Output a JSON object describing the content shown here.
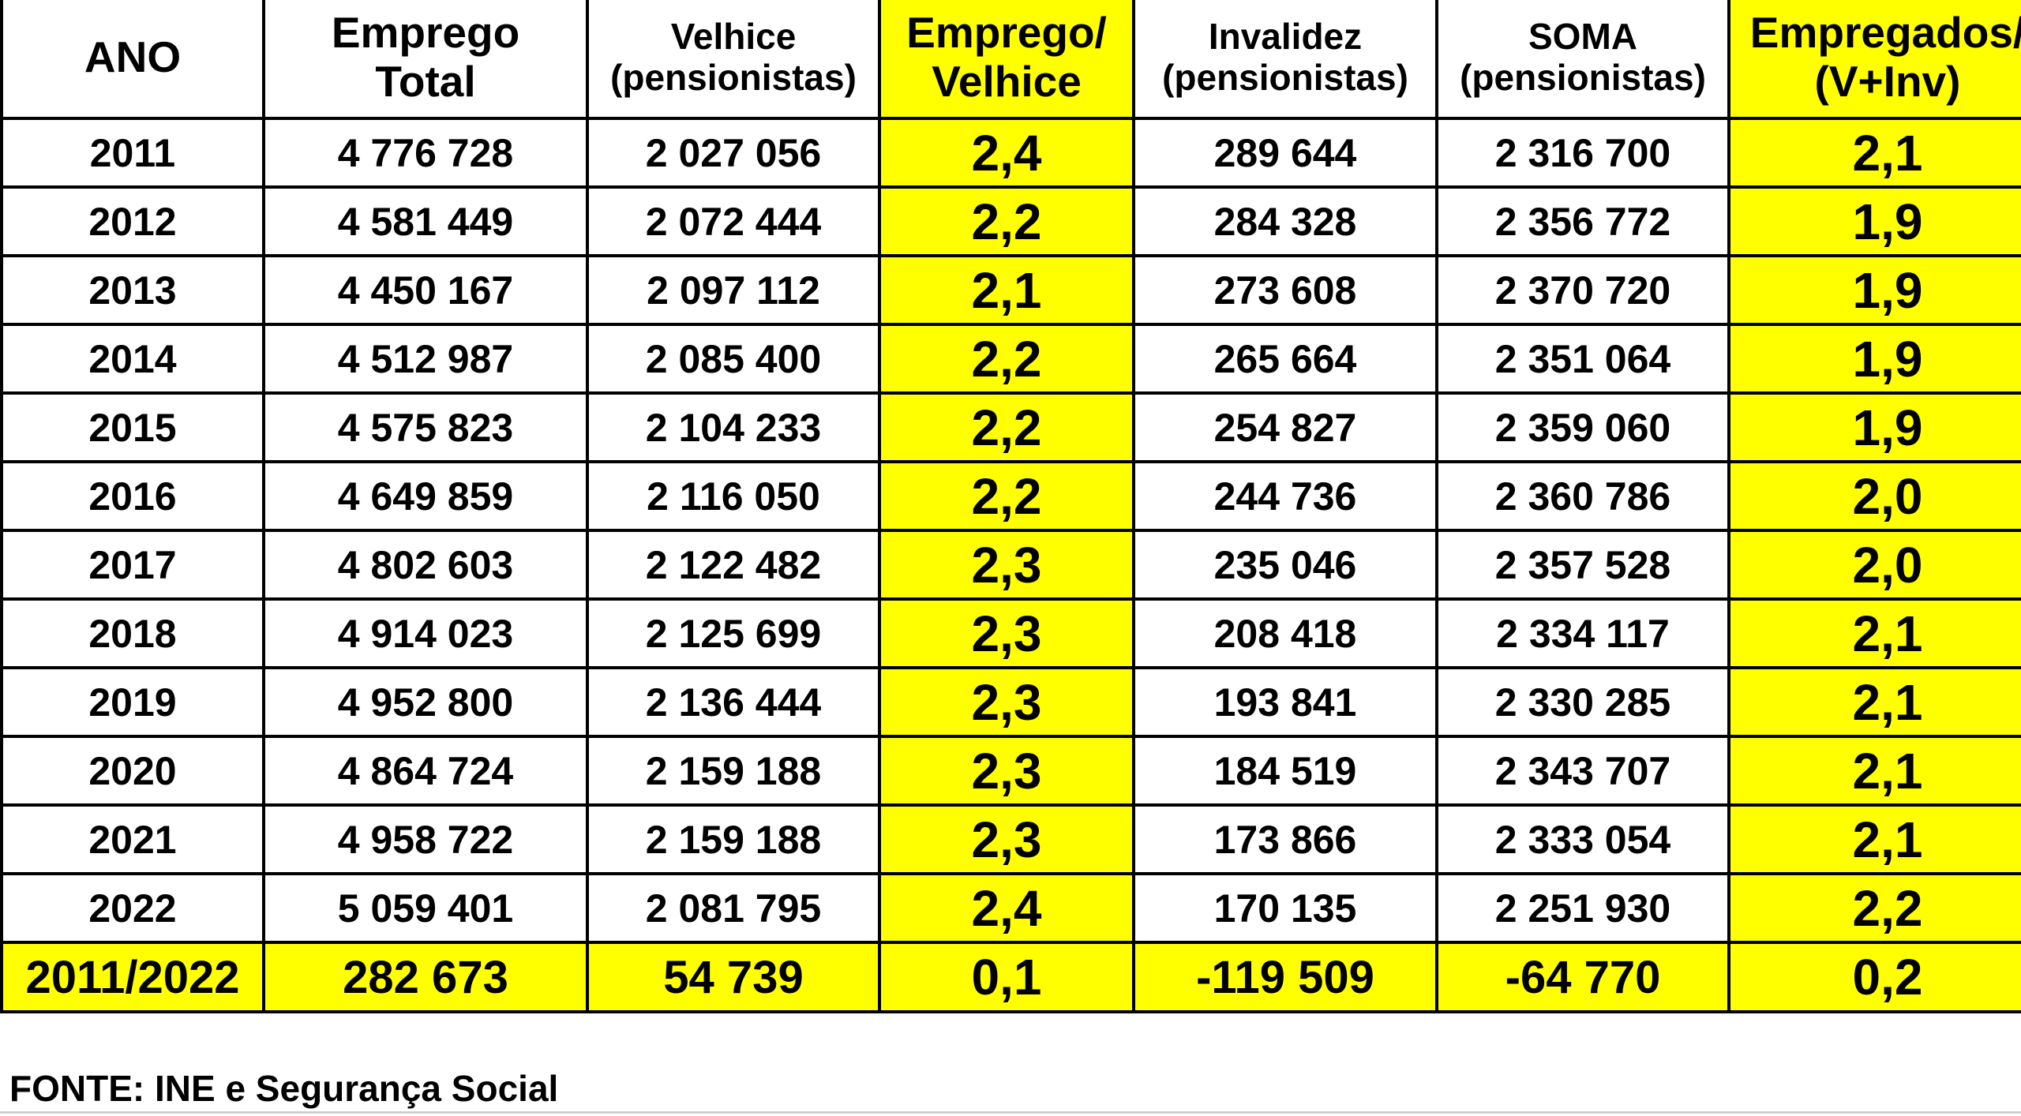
{
  "table": {
    "headers": {
      "ano": [
        "ANO"
      ],
      "emprego_total": [
        "Emprego",
        "Total"
      ],
      "velhice": [
        "Velhice",
        "(pensionistas)"
      ],
      "emprego_velhice": [
        "Emprego/",
        "Velhice"
      ],
      "invalidez": [
        "Invalidez",
        "(pensionistas)"
      ],
      "soma": [
        "SOMA",
        "(pensionistas)"
      ],
      "empregados_vinv": [
        "Empregados/",
        "(V+Inv)"
      ]
    },
    "rows": [
      {
        "ano": "2011",
        "emprego_total": "4 776 728",
        "velhice": "2 027 056",
        "emprego_velhice": "2,4",
        "invalidez": "289 644",
        "soma": "2 316 700",
        "empregados_vinv": "2,1"
      },
      {
        "ano": "2012",
        "emprego_total": "4 581 449",
        "velhice": "2 072 444",
        "emprego_velhice": "2,2",
        "invalidez": "284 328",
        "soma": "2 356 772",
        "empregados_vinv": "1,9"
      },
      {
        "ano": "2013",
        "emprego_total": "4 450 167",
        "velhice": "2 097 112",
        "emprego_velhice": "2,1",
        "invalidez": "273 608",
        "soma": "2 370 720",
        "empregados_vinv": "1,9"
      },
      {
        "ano": "2014",
        "emprego_total": "4 512 987",
        "velhice": "2 085 400",
        "emprego_velhice": "2,2",
        "invalidez": "265 664",
        "soma": "2 351 064",
        "empregados_vinv": "1,9"
      },
      {
        "ano": "2015",
        "emprego_total": "4 575 823",
        "velhice": "2 104 233",
        "emprego_velhice": "2,2",
        "invalidez": "254 827",
        "soma": "2 359 060",
        "empregados_vinv": "1,9"
      },
      {
        "ano": "2016",
        "emprego_total": "4 649 859",
        "velhice": "2 116 050",
        "emprego_velhice": "2,2",
        "invalidez": "244 736",
        "soma": "2 360 786",
        "empregados_vinv": "2,0"
      },
      {
        "ano": "2017",
        "emprego_total": "4 802 603",
        "velhice": "2 122 482",
        "emprego_velhice": "2,3",
        "invalidez": "235 046",
        "soma": "2 357 528",
        "empregados_vinv": "2,0"
      },
      {
        "ano": "2018",
        "emprego_total": "4 914 023",
        "velhice": "2 125 699",
        "emprego_velhice": "2,3",
        "invalidez": "208 418",
        "soma": "2 334 117",
        "empregados_vinv": "2,1"
      },
      {
        "ano": "2019",
        "emprego_total": "4 952 800",
        "velhice": "2 136 444",
        "emprego_velhice": "2,3",
        "invalidez": "193 841",
        "soma": "2 330 285",
        "empregados_vinv": "2,1"
      },
      {
        "ano": "2020",
        "emprego_total": "4 864 724",
        "velhice": "2 159 188",
        "emprego_velhice": "2,3",
        "invalidez": "184 519",
        "soma": "2 343 707",
        "empregados_vinv": "2,1"
      },
      {
        "ano": "2021",
        "emprego_total": "4 958 722",
        "velhice": "2 159 188",
        "emprego_velhice": "2,3",
        "invalidez": "173 866",
        "soma": "2 333 054",
        "empregados_vinv": "2,1"
      },
      {
        "ano": "2022",
        "emprego_total": "5 059 401",
        "velhice": "2 081 795",
        "emprego_velhice": "2,4",
        "invalidez": "170 135",
        "soma": "2 251 930",
        "empregados_vinv": "2,2"
      }
    ],
    "total": {
      "ano": "2011/2022",
      "emprego_total": "282 673",
      "velhice": "54 739",
      "emprego_velhice": "0,1",
      "invalidez": "-119 509",
      "soma": "-64 770",
      "empregados_vinv": "0,2"
    }
  },
  "source": "FONTE: INE e Segurança Social",
  "colors": {
    "highlight": "#ffff00",
    "border": "#000000"
  }
}
